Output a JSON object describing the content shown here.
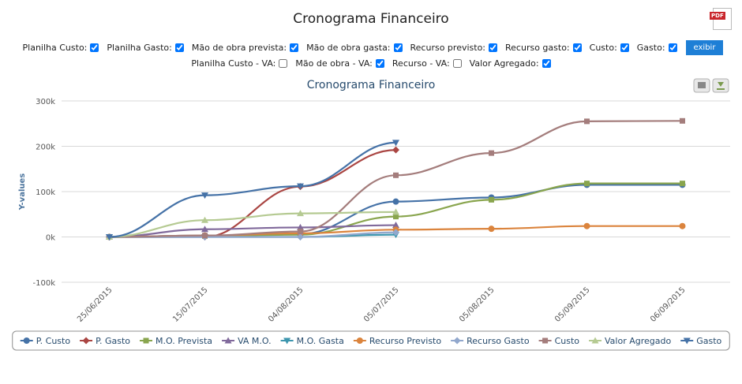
{
  "header": {
    "title": "Cronograma Financeiro",
    "pdf_icon": "PDF"
  },
  "filters": [
    [
      {
        "label": "Planilha Custo:",
        "checked": true
      },
      {
        "label": "Planilha Gasto:",
        "checked": true
      },
      {
        "label": "Mão de obra prevista:",
        "checked": true
      },
      {
        "label": "Mão de obra gasta:",
        "checked": true
      },
      {
        "label": "Recurso previsto:",
        "checked": true
      },
      {
        "label": "Recurso gasto:",
        "checked": true
      },
      {
        "label": "Custo:",
        "checked": true
      },
      {
        "label": "Gasto:",
        "checked": true
      }
    ],
    [
      {
        "label": "Planilha Custo - VA:",
        "checked": false
      },
      {
        "label": "Mão de obra - VA:",
        "checked": true
      },
      {
        "label": "Recurso - VA:",
        "checked": false
      },
      {
        "label": "Valor Agregado:",
        "checked": true
      }
    ]
  ],
  "button": "exibir",
  "chart_data": {
    "type": "line",
    "title": "Cronograma Financeiro",
    "y_label": "Y-values",
    "categories": [
      "25/06/2015",
      "15/07/2015",
      "04/08/2015",
      "05/07/2015",
      "05/08/2015",
      "05/09/2015",
      "06/09/2015"
    ],
    "ylim": [
      -100000,
      300000
    ],
    "yticks": [
      {
        "value": -100000,
        "label": "-100k"
      },
      {
        "value": 0,
        "label": "0k"
      },
      {
        "value": 100000,
        "label": "100k"
      },
      {
        "value": 200000,
        "label": "200k"
      },
      {
        "value": 300000,
        "label": "300k"
      }
    ],
    "grid": true,
    "legend": "bottom",
    "series": [
      {
        "name": "P. Custo",
        "color": "#4572a7",
        "marker": "circle",
        "values": [
          0,
          3000,
          6000,
          78000,
          87000,
          115000,
          115000
        ]
      },
      {
        "name": "P. Gasto",
        "color": "#aa4643",
        "marker": "diamond",
        "values": [
          0,
          0,
          111000,
          192000,
          null,
          null,
          null
        ]
      },
      {
        "name": "M.O. Prevista",
        "color": "#89a54e",
        "marker": "square",
        "values": [
          0,
          2000,
          5000,
          45000,
          82000,
          118000,
          118000
        ]
      },
      {
        "name": "VA M.O.",
        "color": "#80699b",
        "marker": "triangle",
        "values": [
          0,
          17000,
          21000,
          26000,
          null,
          null,
          null
        ]
      },
      {
        "name": "M.O. Gasta",
        "color": "#3d96ae",
        "marker": "triangle-down",
        "values": [
          0,
          0,
          0,
          5000,
          null,
          null,
          null
        ]
      },
      {
        "name": "Recurso Previsto",
        "color": "#db843d",
        "marker": "circle",
        "values": [
          0,
          3000,
          8000,
          16000,
          18000,
          24000,
          24000
        ]
      },
      {
        "name": "Recurso Gasto",
        "color": "#92a8cd",
        "marker": "diamond",
        "values": [
          0,
          0,
          0,
          10000,
          null,
          null,
          null
        ]
      },
      {
        "name": "Custo",
        "color": "#a47d7c",
        "marker": "square",
        "values": [
          0,
          3000,
          12000,
          136000,
          185000,
          255000,
          256000
        ]
      },
      {
        "name": "Valor Agregado",
        "color": "#b5ca92",
        "marker": "triangle",
        "values": [
          0,
          37000,
          52000,
          55000,
          null,
          null,
          null
        ]
      },
      {
        "name": "Gasto",
        "color": "#4572a7",
        "marker": "triangle-down",
        "values": [
          0,
          92000,
          112000,
          208000,
          null,
          null,
          null
        ]
      }
    ]
  }
}
